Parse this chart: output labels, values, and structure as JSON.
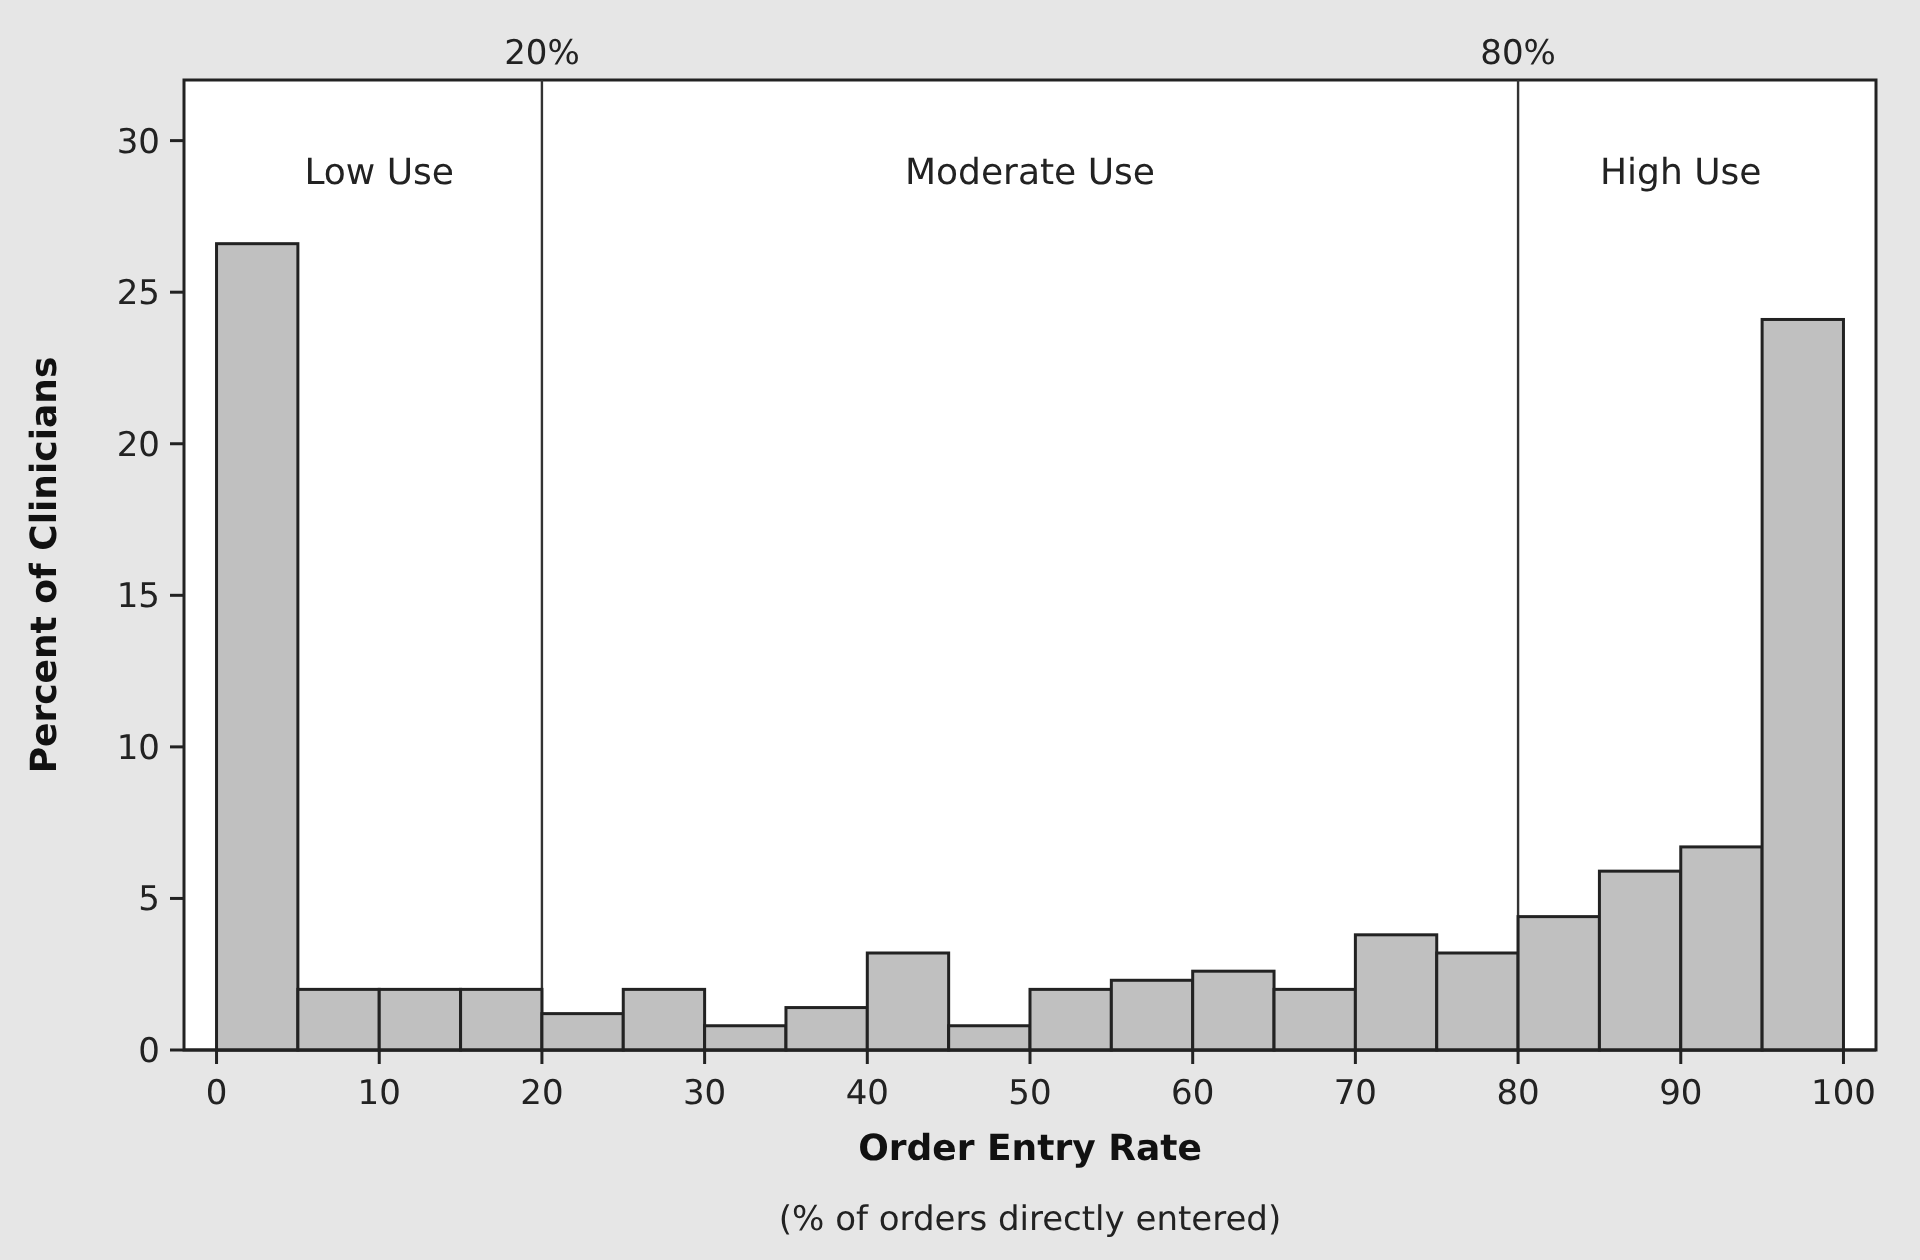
{
  "chart_data": {
    "type": "histogram",
    "xlabel": "Order Entry Rate",
    "ylabel": "Percent of Clinicians",
    "bins": [
      0,
      5,
      10,
      15,
      20,
      25,
      30,
      35,
      40,
      45,
      50,
      55,
      60,
      65,
      70,
      75,
      80,
      85,
      90,
      95,
      100
    ],
    "values": [
      26.6,
      2.0,
      2.0,
      2.0,
      1.2,
      2.0,
      0.8,
      1.4,
      3.2,
      0.8,
      2.0,
      2.3,
      2.6,
      2.0,
      3.8,
      3.2,
      4.4,
      5.9,
      6.7,
      24.1
    ],
    "color": "#c0c0c0",
    "xlim": [
      -2,
      102
    ],
    "ylim": [
      0,
      32
    ],
    "xticks": [
      0,
      10,
      20,
      30,
      40,
      50,
      60,
      70,
      80,
      90,
      100
    ],
    "yticks": [
      0,
      5,
      10,
      15,
      20,
      25,
      30
    ],
    "grid": false,
    "ref_lines": [
      {
        "axis": "x",
        "value": 20,
        "label": "20%",
        "color": "#333333"
      },
      {
        "axis": "x",
        "value": 80,
        "label": "80%",
        "color": "#333333"
      }
    ],
    "annotations": [
      "Low Use",
      "Moderate Use",
      "High Use",
      "(% of orders directly entered)"
    ]
  }
}
